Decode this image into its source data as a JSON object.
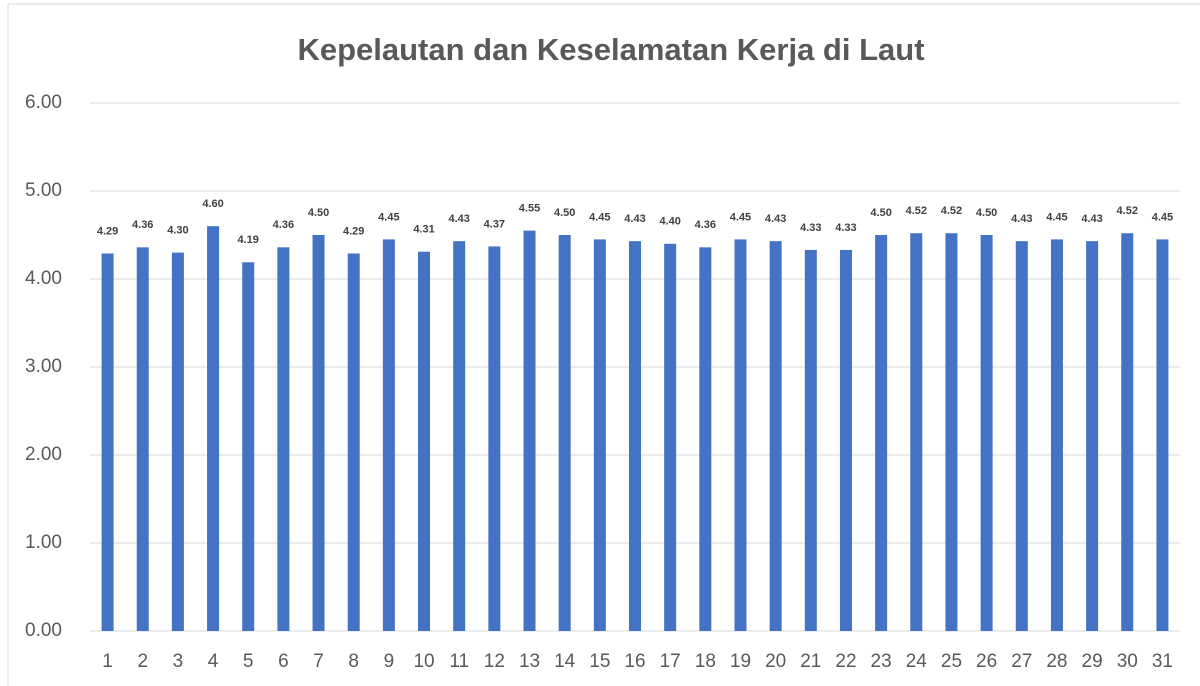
{
  "chart_data": {
    "type": "bar",
    "title": "Kepelautan dan Keselamatan Kerja di Laut",
    "categories": [
      "1",
      "2",
      "3",
      "4",
      "5",
      "6",
      "7",
      "8",
      "9",
      "10",
      "11",
      "12",
      "13",
      "14",
      "15",
      "16",
      "17",
      "18",
      "19",
      "20",
      "21",
      "22",
      "23",
      "24",
      "25",
      "26",
      "27",
      "28",
      "29",
      "30",
      "31"
    ],
    "values": [
      4.29,
      4.36,
      4.3,
      4.6,
      4.19,
      4.36,
      4.5,
      4.29,
      4.45,
      4.31,
      4.43,
      4.37,
      4.55,
      4.5,
      4.45,
      4.43,
      4.4,
      4.36,
      4.45,
      4.43,
      4.33,
      4.33,
      4.5,
      4.52,
      4.52,
      4.5,
      4.43,
      4.45,
      4.43,
      4.52,
      4.45
    ],
    "value_labels": [
      "4.29",
      "4.36",
      "4.30",
      "4.60",
      "4.19",
      "4.36",
      "4.50",
      "4.29",
      "4.45",
      "4.31",
      "4.43",
      "4.37",
      "4.55",
      "4.50",
      "4.45",
      "4.43",
      "4.40",
      "4.36",
      "4.45",
      "4.43",
      "4.33",
      "4.33",
      "4.50",
      "4.52",
      "4.52",
      "4.50",
      "4.43",
      "4.45",
      "4.43",
      "4.52",
      "4.45"
    ],
    "color": "#4472c4",
    "ylim": [
      0,
      6
    ],
    "yticks": [
      {
        "value": 0,
        "label": "0.00"
      },
      {
        "value": 1,
        "label": "1.00"
      },
      {
        "value": 2,
        "label": "2.00"
      },
      {
        "value": 3,
        "label": "3.00"
      },
      {
        "value": 4,
        "label": "4.00"
      },
      {
        "value": 5,
        "label": "5.00"
      },
      {
        "value": 6,
        "label": "6.00"
      }
    ],
    "grid": true
  }
}
